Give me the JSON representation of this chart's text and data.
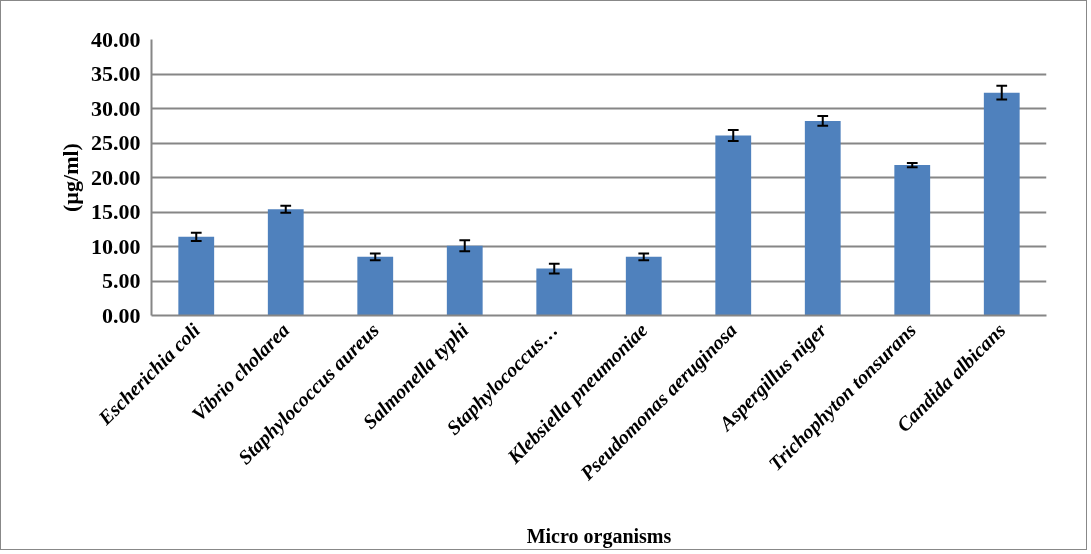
{
  "chart_data": {
    "type": "bar",
    "xlabel": "Micro organisms",
    "ylabel": "(µg/ml)",
    "categories": [
      "Escherichia coli",
      "Vibrio cholarea",
      "Staphylococcus aureus",
      "Salmonella typhi",
      "Staphylococcus…",
      "Klebsiella pneumoniae",
      "Pseudomonas aeruginosa",
      "Aspergillus niger",
      "Trichophyton tonsurans",
      "Candida albicans"
    ],
    "values": [
      11.4,
      15.4,
      8.5,
      10.1,
      6.8,
      8.5,
      26.1,
      28.2,
      21.8,
      32.3
    ],
    "errors": [
      0.6,
      0.5,
      0.5,
      0.8,
      0.7,
      0.5,
      0.8,
      0.7,
      0.3,
      1.0
    ],
    "color": "#4f81bd",
    "ylim": [
      0,
      40
    ],
    "yticks": [
      {
        "value": 0,
        "label": "0.00"
      },
      {
        "value": 5,
        "label": "5.00"
      },
      {
        "value": 10,
        "label": "10.00"
      },
      {
        "value": 15,
        "label": "15.00"
      },
      {
        "value": 20,
        "label": "20.00"
      },
      {
        "value": 25,
        "label": "25.00"
      },
      {
        "value": 30,
        "label": "30.00"
      },
      {
        "value": 35,
        "label": "35.00"
      },
      {
        "value": 40,
        "label": "40.00"
      }
    ],
    "grid": "y"
  }
}
